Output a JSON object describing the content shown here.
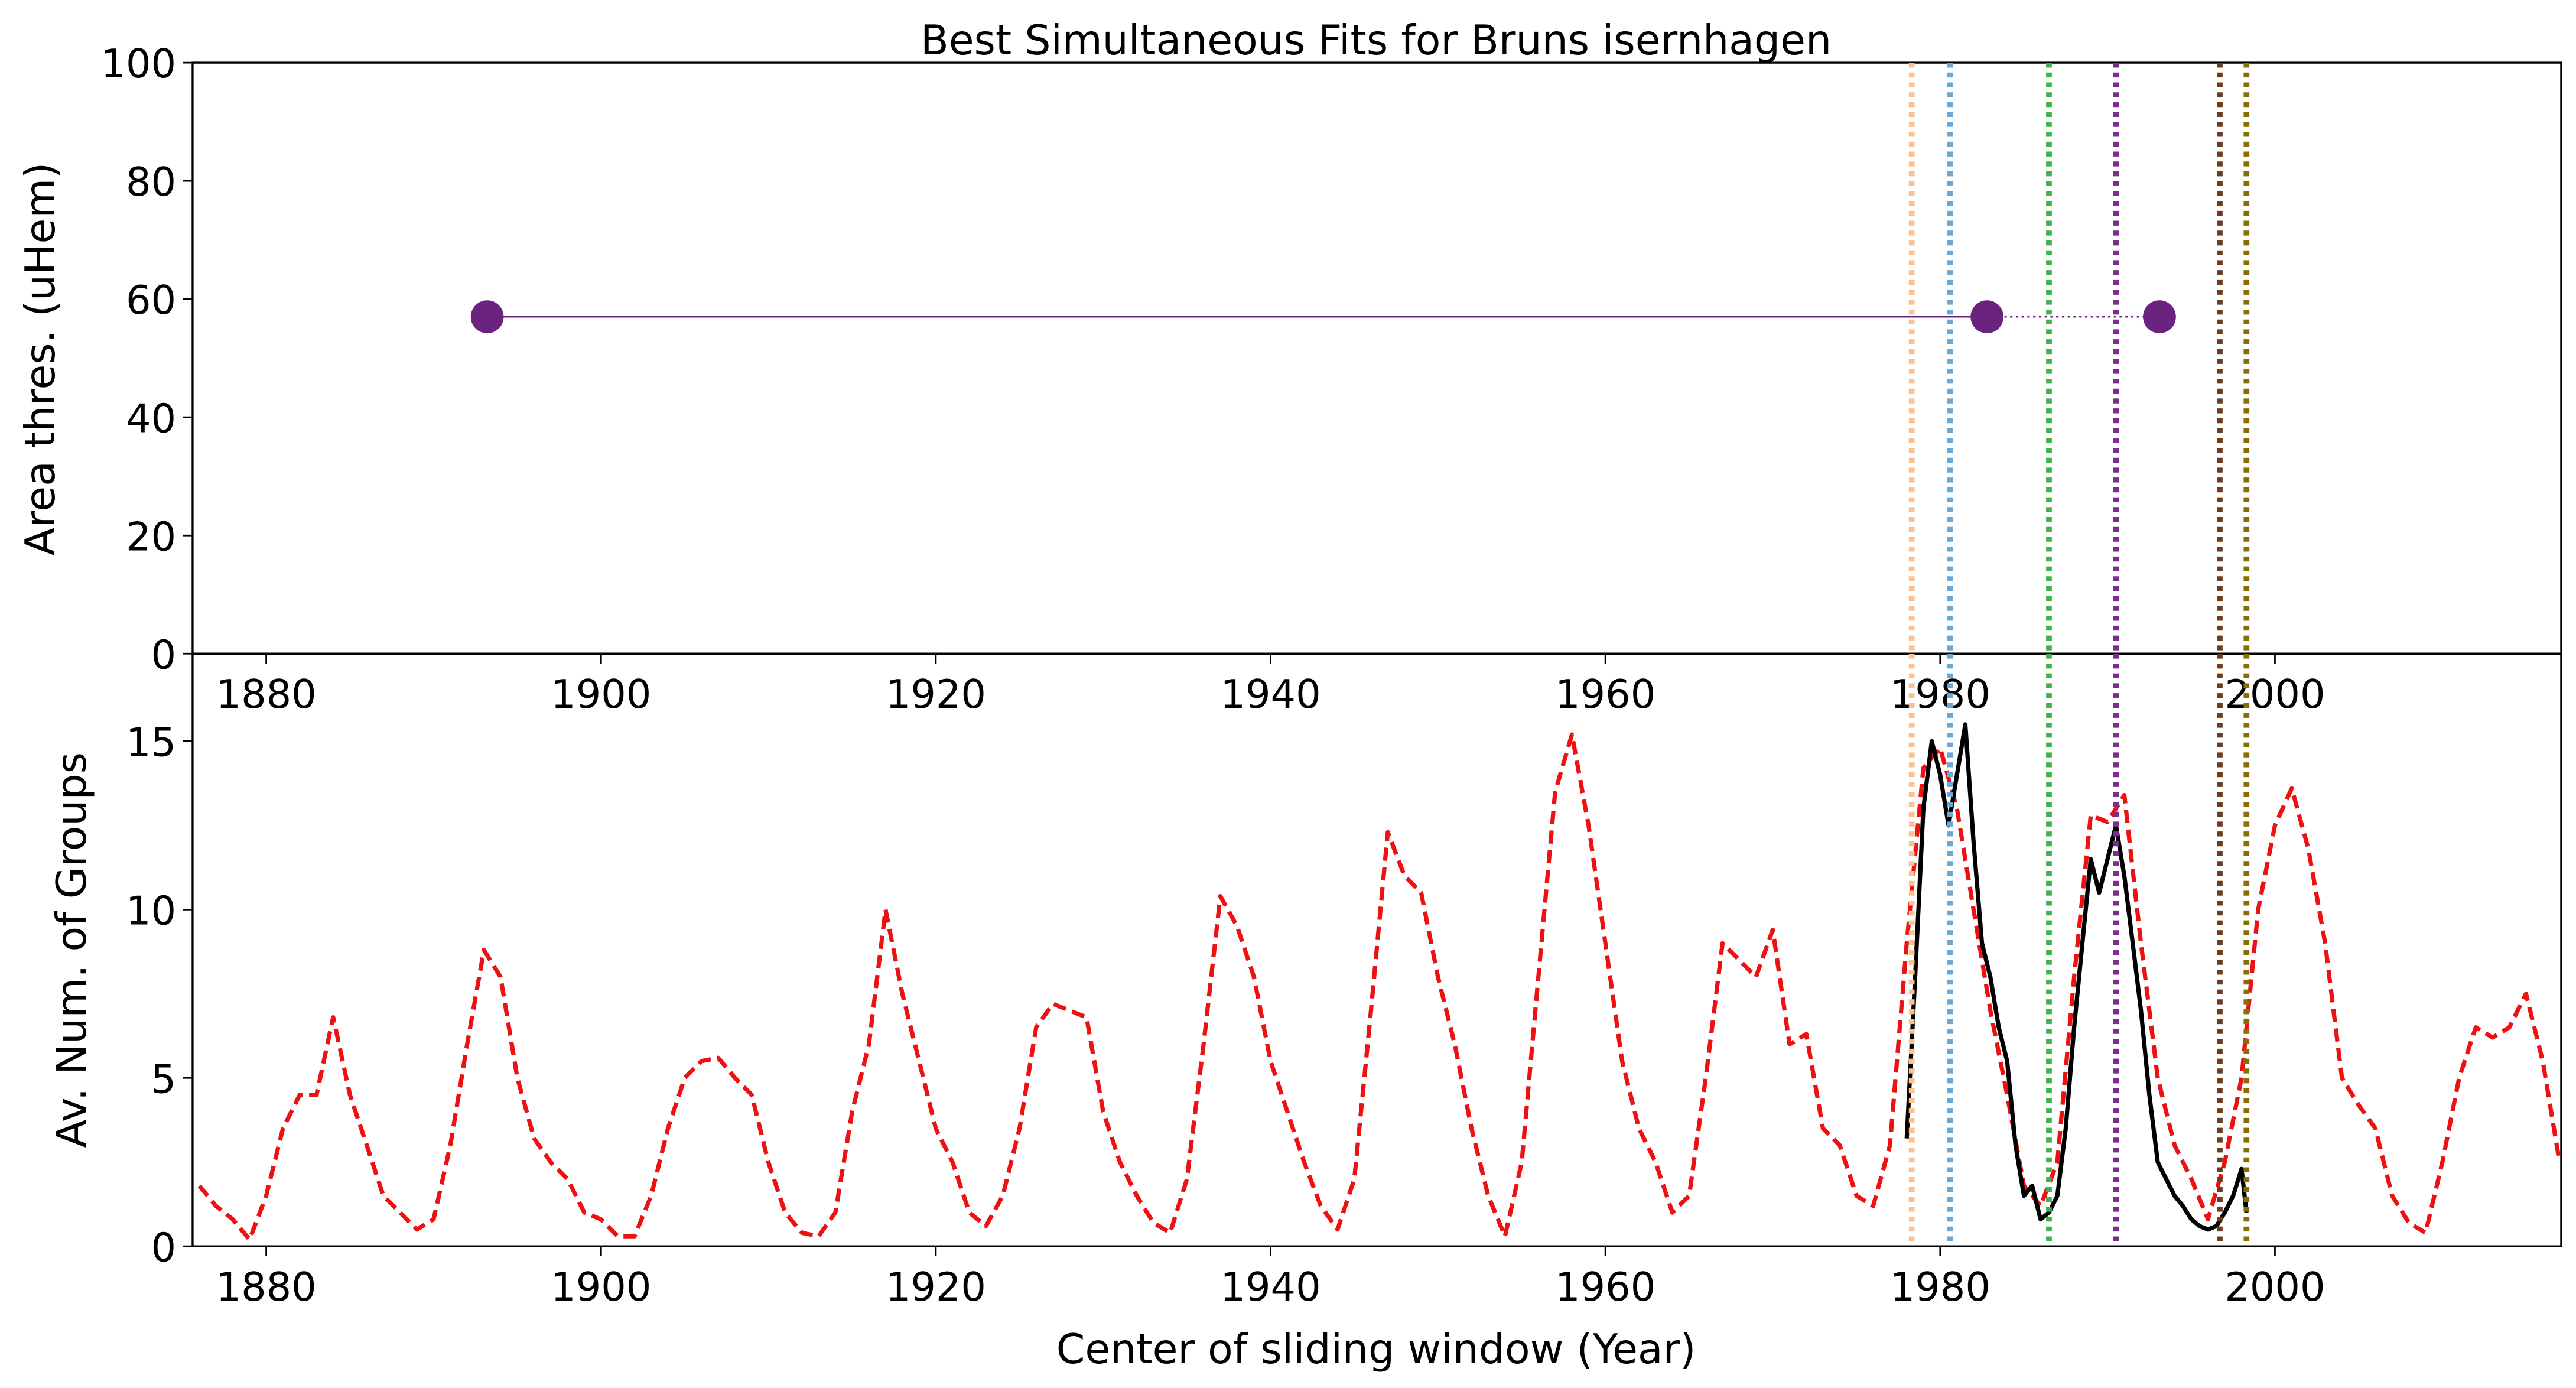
{
  "chart_data": [
    {
      "type": "scatter",
      "title": "Best Simultaneous Fits for Bruns isernhagen",
      "ylabel": "Area thres. (uHem)",
      "x": [
        1893.2,
        1982.8,
        1993.1
      ],
      "values": [
        57,
        57,
        57
      ],
      "color": "#6a2480",
      "xlim": [
        1875.6,
        2017.1
      ],
      "xticks": [
        1880,
        1900,
        1920,
        1940,
        1960,
        1980,
        2000
      ],
      "ylim": [
        0,
        100
      ],
      "yticks": [
        0,
        20,
        40,
        60,
        80,
        100
      ],
      "vlines": [
        {
          "x": 1978.3,
          "color": "#fdc08f"
        },
        {
          "x": 1980.6,
          "color": "#6aa8d8"
        },
        {
          "x": 1986.5,
          "color": "#3cb44b"
        },
        {
          "x": 1990.5,
          "color": "#7b2d8e"
        },
        {
          "x": 1996.7,
          "color": "#6b3d1e"
        },
        {
          "x": 1998.3,
          "color": "#8a6d00"
        }
      ]
    },
    {
      "type": "line",
      "xlabel": "Center of sliding window (Year)",
      "ylabel": "Av. Num. of Groups",
      "xlim": [
        1875.6,
        2017.1
      ],
      "xticks": [
        1880,
        1900,
        1920,
        1940,
        1960,
        1980,
        2000
      ],
      "ylim": [
        0,
        17.6
      ],
      "yticks": [
        0,
        5,
        10,
        15
      ],
      "series": [
        {
          "color": "#ee1111",
          "dash": true,
          "x": [
            1876,
            1877,
            1878,
            1879,
            1880,
            1881,
            1882,
            1883,
            1884,
            1885,
            1886,
            1887,
            1888,
            1889,
            1890,
            1891,
            1892,
            1893,
            1894,
            1895,
            1896,
            1897,
            1898,
            1899,
            1900,
            1901,
            1902,
            1903,
            1904,
            1905,
            1906,
            1907,
            1908,
            1909,
            1910,
            1911,
            1912,
            1913,
            1914,
            1915,
            1916,
            1917,
            1918,
            1919,
            1920,
            1921,
            1922,
            1923,
            1924,
            1925,
            1926,
            1927,
            1928,
            1929,
            1930,
            1931,
            1932,
            1933,
            1934,
            1935,
            1936,
            1937,
            1938,
            1939,
            1940,
            1941,
            1942,
            1943,
            1944,
            1945,
            1946,
            1947,
            1948,
            1949,
            1950,
            1951,
            1952,
            1953,
            1954,
            1955,
            1956,
            1957,
            1958,
            1959,
            1960,
            1961,
            1962,
            1963,
            1964,
            1965,
            1966,
            1967,
            1968,
            1969,
            1970,
            1971,
            1972,
            1973,
            1974,
            1975,
            1976,
            1977,
            1978,
            1979,
            1980,
            1981,
            1982,
            1983,
            1984,
            1985,
            1986,
            1987,
            1988,
            1989,
            1990,
            1991,
            1992,
            1993,
            1994,
            1995,
            1996,
            1997,
            1998,
            1999,
            2000,
            2001,
            2002,
            2003,
            2004,
            2005,
            2006,
            2007,
            2008,
            2009,
            2010,
            2011,
            2012,
            2013,
            2014,
            2015,
            2016,
            2017
          ],
          "values": [
            1.8,
            1.2,
            0.8,
            0.2,
            1.5,
            3.5,
            4.5,
            4.5,
            6.8,
            4.5,
            3,
            1.5,
            1,
            0.5,
            0.8,
            3,
            6,
            8.8,
            8,
            5,
            3.2,
            2.5,
            2,
            1,
            0.8,
            0.3,
            0.3,
            1.5,
            3.5,
            5,
            5.5,
            5.6,
            5,
            4.5,
            2.5,
            1,
            0.4,
            0.3,
            1,
            4,
            6,
            10,
            7.5,
            5.5,
            3.5,
            2.5,
            1,
            0.6,
            1.5,
            3.5,
            6.5,
            7.2,
            7,
            6.8,
            4,
            2.5,
            1.5,
            0.7,
            0.4,
            2,
            6,
            10.4,
            9.5,
            8,
            5.5,
            4,
            2.5,
            1.2,
            0.5,
            2,
            7,
            12.3,
            11,
            10.5,
            8,
            6,
            3.5,
            1.5,
            0.3,
            2.5,
            8,
            13.5,
            15.2,
            12.5,
            9,
            5.5,
            3.5,
            2.5,
            1,
            1.5,
            5,
            9,
            8.5,
            8,
            9.4,
            6,
            6.3,
            3.5,
            3,
            1.5,
            1.2,
            3,
            9,
            14.2,
            14.8,
            13,
            10,
            7,
            4.5,
            1.8,
            1.2,
            2.5,
            8,
            12.8,
            12.6,
            13.4,
            9,
            5,
            3,
            2,
            0.8,
            2.5,
            5,
            10,
            12.5,
            13.6,
            11.8,
            9,
            5,
            4.2,
            3.5,
            1.5,
            0.7,
            0.4,
            2.5,
            5,
            6.5,
            6.2,
            6.5,
            7.5,
            5.5,
            2.5
          ]
        },
        {
          "color": "#000000",
          "dash": false,
          "x": [
            1978,
            1978.5,
            1979,
            1979.5,
            1980,
            1980.5,
            1981,
            1981.5,
            1982,
            1982.5,
            1983,
            1983.5,
            1984,
            1984.5,
            1985,
            1985.5,
            1986,
            1986.5,
            1987,
            1987.5,
            1988,
            1988.5,
            1989,
            1989.5,
            1990,
            1990.5,
            1991,
            1991.5,
            1992,
            1992.5,
            1993,
            1993.5,
            1994,
            1994.5,
            1995,
            1995.5,
            1996,
            1996.5,
            1997,
            1997.5,
            1998,
            1998.3
          ],
          "values": [
            3.2,
            8,
            13,
            15,
            14,
            12.5,
            14,
            15.5,
            12,
            9,
            8,
            6.5,
            5.5,
            3,
            1.5,
            1.8,
            0.8,
            1,
            1.5,
            3.5,
            6.5,
            9,
            11.5,
            10.5,
            11.5,
            12.5,
            11,
            9,
            7,
            4.5,
            2.5,
            2,
            1.5,
            1.2,
            0.8,
            0.6,
            0.5,
            0.6,
            1,
            1.5,
            2.3,
            1
          ]
        }
      ],
      "vlines": [
        {
          "x": 1978.3,
          "color": "#fdc08f"
        },
        {
          "x": 1980.6,
          "color": "#6aa8d8"
        },
        {
          "x": 1986.5,
          "color": "#3cb44b"
        },
        {
          "x": 1990.5,
          "color": "#7b2d8e"
        },
        {
          "x": 1996.7,
          "color": "#6b3d1e"
        },
        {
          "x": 1998.3,
          "color": "#8a6d00"
        }
      ]
    }
  ]
}
